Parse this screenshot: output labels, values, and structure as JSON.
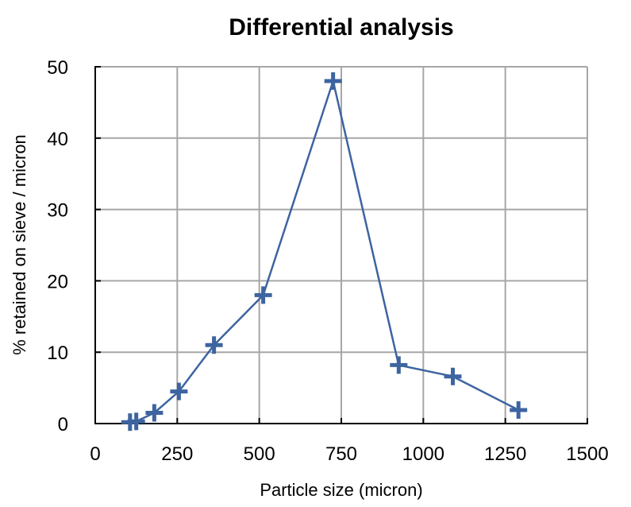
{
  "chart_data": {
    "type": "line",
    "title": "Differential analysis",
    "xlabel": "Particle size (micron)",
    "ylabel": "% retained on sieve / micron",
    "xlim": [
      0,
      1500
    ],
    "ylim": [
      0,
      50
    ],
    "xticks": [
      0,
      250,
      500,
      750,
      1000,
      1250,
      1500
    ],
    "yticks": [
      0,
      10,
      20,
      30,
      40,
      50
    ],
    "xtick_labels": [
      "0",
      "250",
      "500",
      "750",
      "1000",
      "1250",
      "1500"
    ],
    "ytick_labels": [
      "0",
      "10",
      "20",
      "30",
      "40",
      "50"
    ],
    "grid": true,
    "legend": "none",
    "series": [
      {
        "color": "#3d64a0",
        "marker": "plus",
        "x": [
          106,
          125,
          180,
          255,
          362,
          512,
          725,
          925,
          1090,
          1290
        ],
        "y": [
          0.2,
          0.3,
          1.5,
          4.5,
          11,
          18,
          48,
          8.2,
          6.6,
          1.9
        ]
      }
    ]
  }
}
